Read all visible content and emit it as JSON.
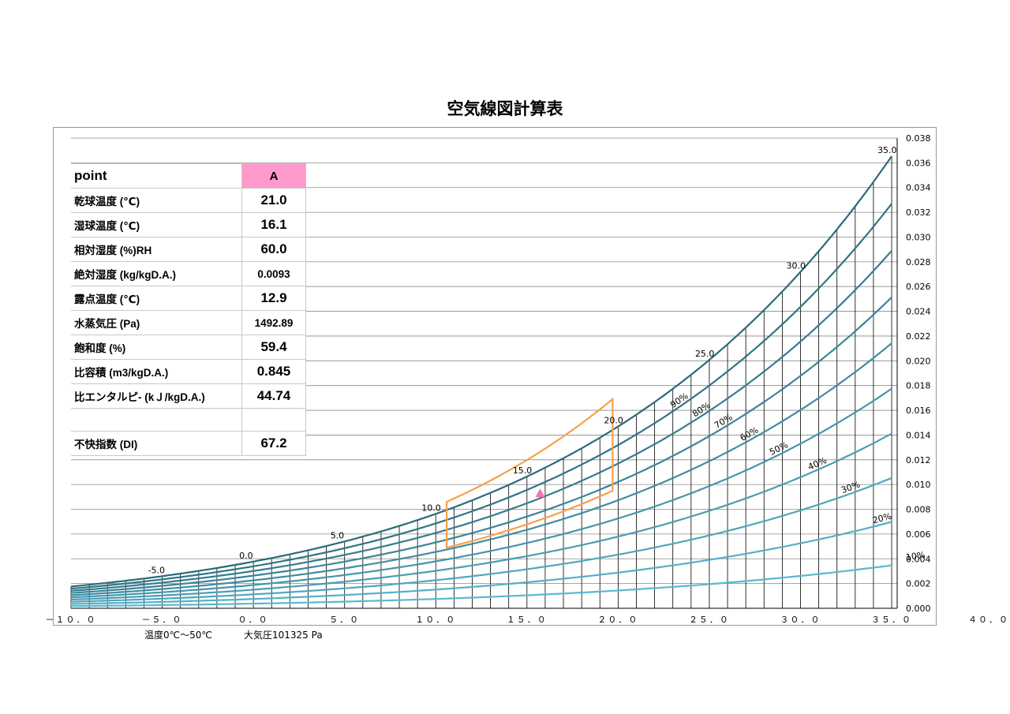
{
  "title": "空気線図計算表",
  "footer": {
    "temp_range": "温度0℃～50℃",
    "pressure": "大気圧101325 Pa"
  },
  "table": {
    "header": {
      "label": "point",
      "value": "A"
    },
    "rows": [
      {
        "label": "乾球温度 (℃)",
        "value": "21.0"
      },
      {
        "label": "湿球温度 (℃)",
        "value": "16.1"
      },
      {
        "label": "相対湿度 (%)RH",
        "value": "60.0"
      },
      {
        "label": "絶対湿度 (kg/kgD.A.)",
        "value": "0.0093"
      },
      {
        "label": "露点温度 (℃)",
        "value": "12.9"
      },
      {
        "label": "水蒸気圧 (Pa)",
        "value": "1492.89"
      },
      {
        "label": "飽和度 (%)",
        "value": "59.4"
      },
      {
        "label": "比容積 (m3/kgD.A.)",
        "value": "0.845"
      },
      {
        "label": "比エンタルピ- (kＪ/kgD.A.)",
        "value": "44.74"
      },
      {
        "label": "不快指数 (DI)",
        "value": "67.2"
      }
    ]
  },
  "chart_data": {
    "type": "line",
    "title": "空気線図計算表",
    "x_axis": {
      "label": "",
      "range": [
        -10,
        40
      ],
      "tick_labels": [
        "－１０．０",
        "－５．０",
        "０．０",
        "５．０",
        "１０．０",
        "１５．０",
        "２０．０",
        "２５．０",
        "３０．０",
        "３５．０",
        "４０．０"
      ],
      "tick_values": [
        -10,
        -5,
        0,
        5,
        10,
        15,
        20,
        25,
        30,
        35,
        40
      ]
    },
    "y_axis": {
      "label": "",
      "side": "right",
      "range": [
        0,
        0.038
      ],
      "tick_labels": [
        "0.000",
        "0.002",
        "0.004",
        "0.006",
        "0.008",
        "0.010",
        "0.012",
        "0.014",
        "0.016",
        "0.018",
        "0.020",
        "0.022",
        "0.024",
        "0.026",
        "0.028",
        "0.030",
        "0.032",
        "0.034",
        "0.036",
        "0.038"
      ]
    },
    "grid": true,
    "pressure_pa": 101325,
    "rh_curves": [
      100,
      90,
      80,
      70,
      60,
      50,
      40,
      30,
      20,
      10
    ],
    "rh_labels": [
      "90%",
      "80%",
      "70%",
      "60%",
      "50%",
      "40%",
      "30%",
      "20%",
      "10%"
    ],
    "saturation_temp_labels": [
      "-5.0",
      "0.0",
      "5.0",
      "10.0",
      "15.0",
      "20.0",
      "25.0",
      "30.0",
      "35.0"
    ],
    "comfort_zone": {
      "points": [
        {
          "t": 10.6,
          "w": 0.0086
        },
        {
          "t": 19.7,
          "w": 0.0169
        },
        {
          "t": 19.7,
          "w": 0.0095
        },
        {
          "t": 10.6,
          "w": 0.0049
        }
      ],
      "color": "#f7a04a"
    },
    "point_A": {
      "t": 21.0,
      "w": 0.0093,
      "color": "#ff6fb1"
    },
    "colors": {
      "dark": "#2a6b7c",
      "light": "#5ab8d0",
      "grid": "#000000"
    }
  }
}
